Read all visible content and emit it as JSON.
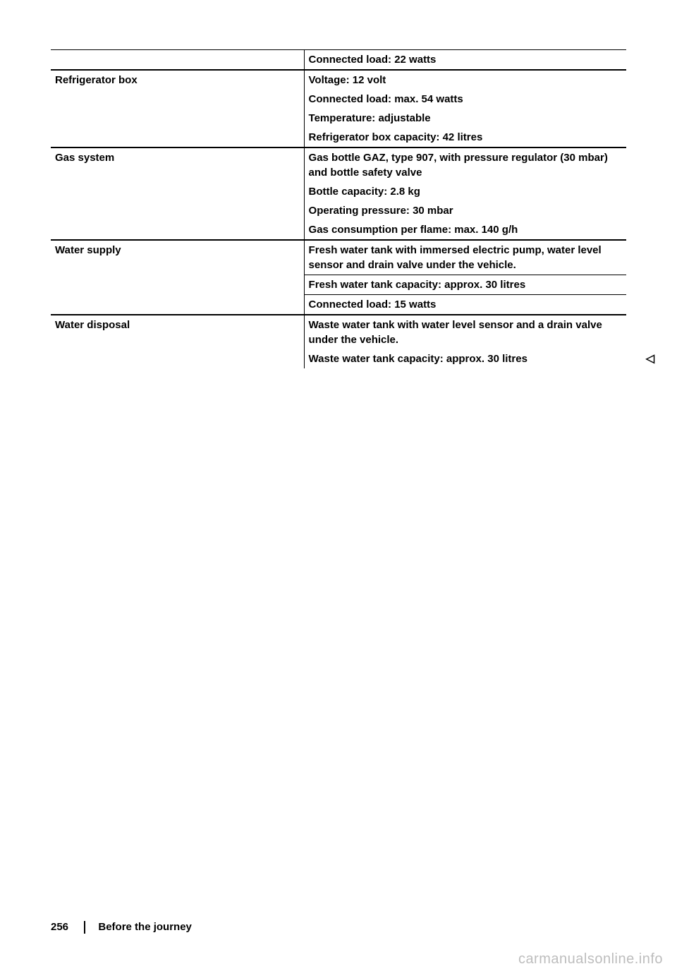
{
  "table": {
    "font_size_pt": 11,
    "font_weight": "bold",
    "text_color": "#000000",
    "border_color": "#000000",
    "rows": [
      {
        "left": "",
        "right": "Connected load: 22 watts",
        "border": "thin-top"
      },
      {
        "left": "Refrigerator box",
        "right": "Voltage: 12 volt",
        "border": "thick-top"
      },
      {
        "left": "",
        "right": "Connected load: max. 54 watts",
        "border": "none"
      },
      {
        "left": "",
        "right": "Temperature: adjustable",
        "border": "none"
      },
      {
        "left": "",
        "right": "Refrigerator box capacity: 42 litres",
        "border": "none"
      },
      {
        "left": "Gas system",
        "right": "Gas bottle GAZ, type 907, with pressure regulator (30 mbar) and bottle safety valve",
        "border": "thick-top"
      },
      {
        "left": "",
        "right": "Bottle capacity: 2.8 kg",
        "border": "none"
      },
      {
        "left": "",
        "right": "Operating pressure: 30 mbar",
        "border": "none"
      },
      {
        "left": "",
        "right": "Gas consumption per flame: max. 140 g/h",
        "border": "none"
      },
      {
        "left": "Water supply",
        "right": "Fresh water tank with immersed electric pump, water level sensor and drain valve under the vehicle.",
        "border": "thick-top"
      },
      {
        "left": "",
        "right": "Fresh water tank capacity: approx. 30 litres",
        "border": "right-thin-top"
      },
      {
        "left": "",
        "right": "Connected load: 15 watts",
        "border": "right-thin-top"
      },
      {
        "left": "Water disposal",
        "right": "Waste water tank with water level sensor and a drain valve under the vehicle.",
        "border": "thick-top"
      },
      {
        "left": "",
        "right": "Waste water tank capacity: approx. 30 litres",
        "border": "none",
        "end_marker": "◁"
      }
    ]
  },
  "footer": {
    "page_number": "256",
    "section_title": "Before the journey"
  },
  "watermark": "carmanualsonline.info"
}
